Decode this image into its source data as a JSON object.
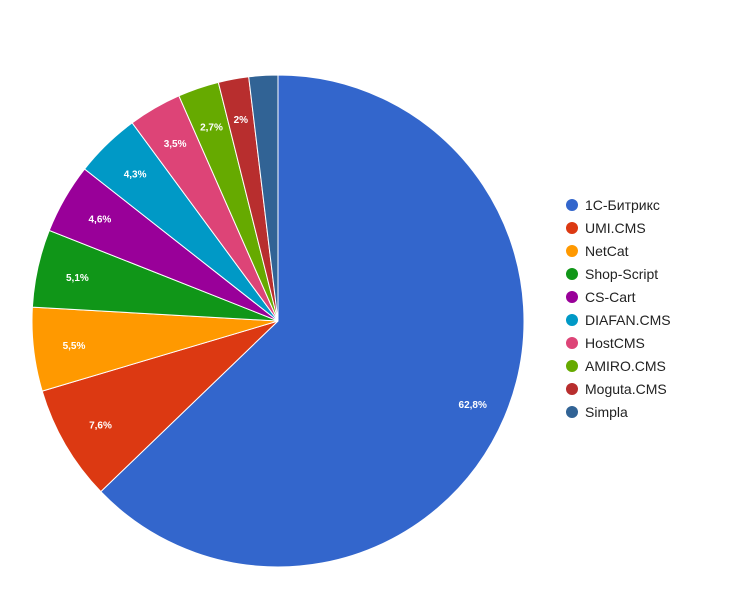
{
  "chart_data": {
    "type": "pie",
    "title": "",
    "legend_position": "right",
    "series": [
      {
        "name": "1С-Битрикс",
        "value": 62.8,
        "label": "62,8%",
        "color": "#3366cc"
      },
      {
        "name": "UMI.CMS",
        "value": 7.6,
        "label": "7,6%",
        "color": "#dc3912"
      },
      {
        "name": "NetCat",
        "value": 5.5,
        "label": "5,5%",
        "color": "#ff9900"
      },
      {
        "name": "Shop-Script",
        "value": 5.1,
        "label": "5,1%",
        "color": "#109618"
      },
      {
        "name": "CS-Cart",
        "value": 4.6,
        "label": "4,6%",
        "color": "#990099"
      },
      {
        "name": "DIAFAN.CMS",
        "value": 4.3,
        "label": "4,3%",
        "color": "#0099c6"
      },
      {
        "name": "HostCMS",
        "value": 3.5,
        "label": "3,5%",
        "color": "#dd4477"
      },
      {
        "name": "AMIRO.CMS",
        "value": 2.7,
        "label": "2,7%",
        "color": "#66aa00"
      },
      {
        "name": "Moguta.CMS",
        "value": 2.0,
        "label": "2%",
        "color": "#b82e2e"
      },
      {
        "name": "Simpla",
        "value": 1.9,
        "label": "",
        "color": "#316395"
      }
    ]
  }
}
